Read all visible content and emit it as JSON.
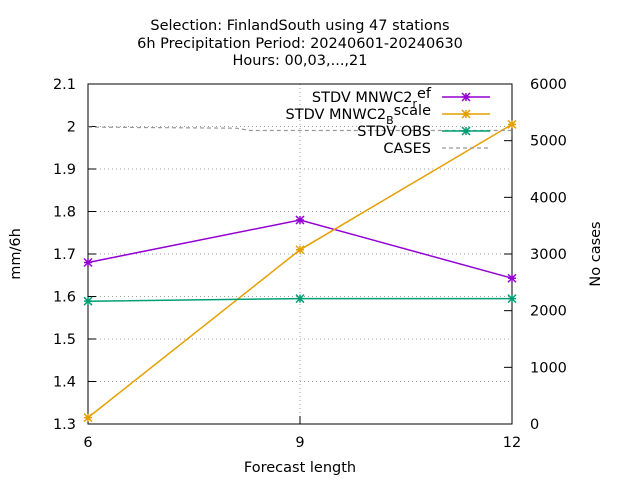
{
  "chart_data": {
    "type": "line",
    "title_lines": [
      "Selection: FinlandSouth using    47 stations",
      "6h Precipitation   Period: 20240601-20240630",
      "Hours: 00,03,...,21"
    ],
    "xlabel": "Forecast length",
    "ylabel": "mm/6h",
    "y2label": "No cases",
    "x": [
      6,
      9,
      12
    ],
    "xlim": [
      6,
      12
    ],
    "xticks": [
      "6",
      "9",
      "12"
    ],
    "ylim": [
      1.3,
      2.1
    ],
    "yticks": [
      "1.3",
      "1.4",
      "1.5",
      "1.6",
      "1.7",
      "1.8",
      "1.9",
      "2",
      "2.1"
    ],
    "y2lim": [
      0,
      6000
    ],
    "y2ticks": [
      "0",
      "1000",
      "2000",
      "3000",
      "4000",
      "5000",
      "6000"
    ],
    "grid": true,
    "legend_position": "top-right",
    "series": [
      {
        "name": "STDV MNWC2_ref",
        "legend_main": "STDV MNWC2",
        "legend_sub": "r",
        "legend_tail": "ef",
        "axis": "y",
        "color": "#9400d3",
        "dash": false,
        "marker": true,
        "values": [
          1.68,
          1.78,
          1.643
        ]
      },
      {
        "name": "STDV MNWC2_Bscale",
        "legend_main": "STDV MNWC2",
        "legend_sub": "B",
        "legend_tail": "scale",
        "axis": "y",
        "color": "#e69f00",
        "dash": false,
        "marker": true,
        "values": [
          1.315,
          1.71,
          2.005
        ]
      },
      {
        "name": "STDV OBS",
        "legend_main": "STDV OBS",
        "legend_sub": "",
        "legend_tail": "",
        "axis": "y",
        "color": "#009e73",
        "dash": false,
        "marker": true,
        "values": [
          1.589,
          1.595,
          1.595
        ]
      },
      {
        "name": "CASES",
        "legend_main": "CASES",
        "legend_sub": "",
        "legend_tail": "",
        "axis": "y2",
        "color": "#999999",
        "dash": true,
        "marker": false,
        "x": [
          6,
          8.1,
          8.3,
          12
        ],
        "values": [
          5240,
          5220,
          5180,
          5180
        ]
      }
    ]
  }
}
